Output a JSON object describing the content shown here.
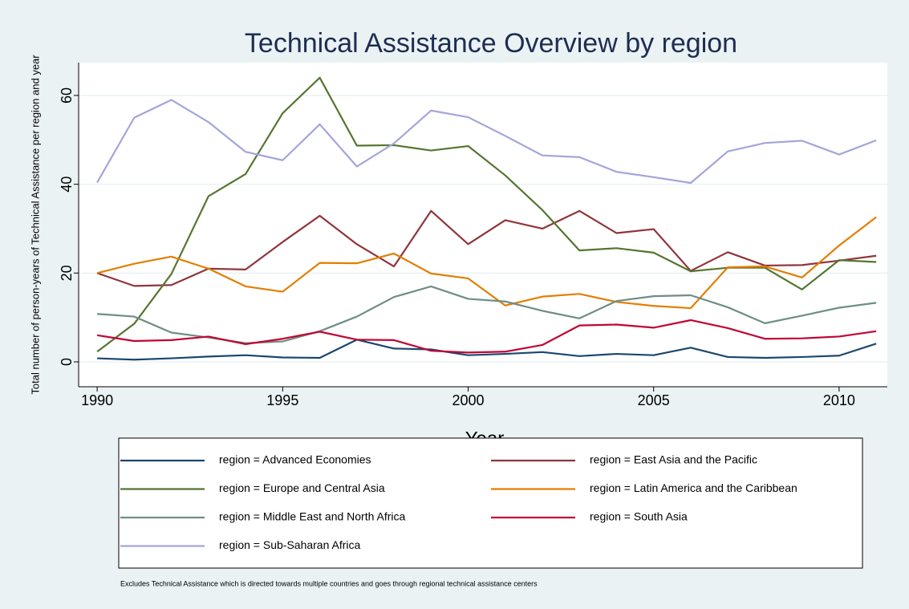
{
  "chart_data": {
    "type": "line",
    "title": "Technical Assistance Overview by region",
    "x_label": "Year",
    "y_label": "Total number of person-years of Technical Assistance per region and year",
    "note": "Excludes Technical Assistance which is directed towards multiple countries and goes through regional technical assistance centers",
    "x": [
      1990,
      1991,
      1992,
      1993,
      1994,
      1995,
      1996,
      1997,
      1998,
      1999,
      2000,
      2001,
      2002,
      2003,
      2004,
      2005,
      2006,
      2007,
      2008,
      2009,
      2010,
      2011
    ],
    "xlim": [
      1989.5,
      2011.3
    ],
    "xticks": [
      1990,
      1995,
      2000,
      2005,
      2010
    ],
    "ylim": [
      -5.6,
      67.4
    ],
    "yticks": [
      0,
      20,
      40,
      60
    ],
    "grid": true,
    "series": [
      {
        "name": "region = Advanced Economies",
        "color": "#1a476f",
        "values": [
          0.8,
          0.5,
          0.8,
          1.2,
          1.5,
          1.0,
          0.9,
          5.0,
          3.0,
          2.8,
          1.5,
          1.8,
          2.2,
          1.3,
          1.8,
          1.5,
          3.2,
          1.1,
          0.9,
          1.1,
          1.4,
          4.1
        ]
      },
      {
        "name": "region = East Asia and the Pacific",
        "color": "#90353b",
        "values": [
          20,
          17.1,
          17.3,
          21,
          20.8,
          27,
          32.9,
          26.5,
          21.5,
          34,
          26.5,
          31.9,
          30,
          34,
          29,
          29.9,
          20.5,
          24.7,
          21.7,
          21.8,
          22.8,
          23.9
        ]
      },
      {
        "name": "region = Europe and Central Asia",
        "color": "#55752f",
        "values": [
          2.3,
          8.6,
          19.8,
          37.3,
          42.3,
          56,
          64,
          48.7,
          48.8,
          47.6,
          48.6,
          42,
          34.2,
          25.1,
          25.6,
          24.6,
          20.4,
          21.2,
          21.2,
          16.3,
          22.9,
          22.5
        ]
      },
      {
        "name": "region = Latin America and the Caribbean",
        "color": "#e37e00",
        "values": [
          20,
          22.1,
          23.7,
          21,
          17,
          15.8,
          22.3,
          22.2,
          24.4,
          19.9,
          18.8,
          12.7,
          14.7,
          15.3,
          13.5,
          12.6,
          12.1,
          21.3,
          21.5,
          19,
          26.2,
          32.6
        ]
      },
      {
        "name": "region = Middle East and North Africa",
        "color": "#6e8e84",
        "values": [
          10.8,
          10.2,
          6.6,
          5.5,
          4.2,
          4.6,
          6.9,
          10.2,
          14.6,
          17,
          14.2,
          13.6,
          11.5,
          9.8,
          13.7,
          14.8,
          15,
          12.3,
          8.7,
          10.4,
          12.2,
          13.3
        ]
      },
      {
        "name": "region = South Asia",
        "color": "#c10534",
        "values": [
          6,
          4.7,
          4.9,
          5.7,
          4.0,
          5.2,
          6.8,
          5.0,
          4.9,
          2.5,
          2.1,
          2.3,
          3.8,
          8.2,
          8.4,
          7.7,
          9.4,
          7.6,
          5.2,
          5.3,
          5.7,
          6.9
        ]
      },
      {
        "name": "region = Sub-Saharan Africa",
        "color": "#a3a5da",
        "values": [
          40.4,
          55,
          59,
          54,
          47.3,
          45.4,
          53.5,
          44,
          49.2,
          56.6,
          55.1,
          50.9,
          46.5,
          46.1,
          42.8,
          41.6,
          40.3,
          47.4,
          49.3,
          49.8,
          46.7,
          49.9
        ]
      }
    ]
  }
}
